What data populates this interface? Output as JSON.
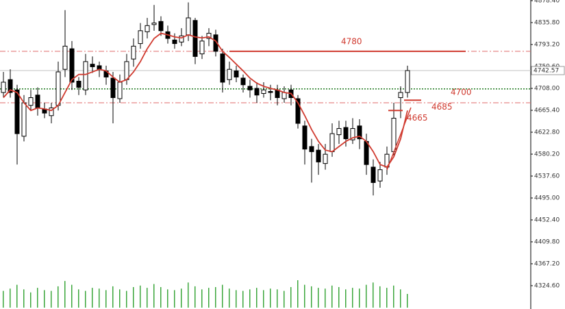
{
  "chart_data": {
    "type": "candlestick",
    "ylim": [
      4279.3,
      4879.7
    ],
    "yticks": [
      {
        "value": 4878.4,
        "label": "4878.40"
      },
      {
        "value": 4835.8,
        "label": "4835.80"
      },
      {
        "value": 4793.2,
        "label": "4793.20"
      },
      {
        "value": 4750.6,
        "label": "4750.60"
      },
      {
        "value": 4708,
        "label": "4708.00"
      },
      {
        "value": 4665.4,
        "label": "4665.40"
      },
      {
        "value": 4622.8,
        "label": "4622.80"
      },
      {
        "value": 4580.2,
        "label": "4580.20"
      },
      {
        "value": 4537.6,
        "label": "4537.60"
      },
      {
        "value": 4495,
        "label": "4495.00"
      },
      {
        "value": 4452.4,
        "label": "4452.40"
      },
      {
        "value": 4409.8,
        "label": "4409.80"
      },
      {
        "value": 4367.2,
        "label": "4367.20"
      },
      {
        "value": 4324.6,
        "label": "4324.60"
      }
    ],
    "open": [
      4700,
      4725,
      4705,
      4615,
      4675,
      4695,
      4668,
      4655,
      4675,
      4745,
      4785,
      4722,
      4705,
      4755,
      4752,
      4742,
      4728,
      4688,
      4725,
      4765,
      4795,
      4818,
      4832,
      4838,
      4818,
      4802,
      4798,
      4812,
      4840,
      4775,
      4805,
      4812,
      4775,
      4725,
      4742,
      4728,
      4712,
      4708,
      4698,
      4702,
      4705,
      4688,
      4705,
      4688,
      4635,
      4595,
      4588,
      4562,
      4585,
      4618,
      4632,
      4608,
      4635,
      4605,
      4555,
      4528,
      4555,
      4585,
      4690,
      4700
    ],
    "high": [
      4740,
      4745,
      4715,
      4695,
      4705,
      4710,
      4680,
      4680,
      4760,
      4860,
      4800,
      4730,
      4775,
      4770,
      4760,
      4752,
      4740,
      4735,
      4775,
      4805,
      4835,
      4845,
      4870,
      4848,
      4830,
      4815,
      4825,
      4875,
      4845,
      4810,
      4825,
      4822,
      4785,
      4760,
      4752,
      4735,
      4725,
      4720,
      4720,
      4715,
      4715,
      4712,
      4715,
      4695,
      4645,
      4610,
      4600,
      4600,
      4640,
      4645,
      4645,
      4650,
      4648,
      4620,
      4570,
      4565,
      4595,
      4680,
      4712,
      4752
    ],
    "low": [
      4690,
      4690,
      4560,
      4605,
      4665,
      4655,
      4650,
      4640,
      4665,
      4730,
      4705,
      4695,
      4695,
      4738,
      4730,
      4715,
      4640,
      4680,
      4715,
      4750,
      4785,
      4805,
      4820,
      4810,
      4795,
      4785,
      4790,
      4800,
      4755,
      4765,
      4790,
      4770,
      4700,
      4715,
      4720,
      4700,
      4690,
      4680,
      4690,
      4685,
      4675,
      4680,
      4675,
      4630,
      4560,
      4525,
      4540,
      4550,
      4575,
      4600,
      4595,
      4600,
      4590,
      4540,
      4500,
      4515,
      4540,
      4575,
      4650,
      4690
    ],
    "close": [
      4720,
      4700,
      4620,
      4680,
      4690,
      4670,
      4660,
      4670,
      4740,
      4790,
      4720,
      4710,
      4760,
      4750,
      4745,
      4730,
      4690,
      4720,
      4760,
      4790,
      4820,
      4830,
      4835,
      4820,
      4805,
      4795,
      4810,
      4845,
      4770,
      4800,
      4815,
      4780,
      4720,
      4745,
      4730,
      4715,
      4705,
      4695,
      4705,
      4700,
      4690,
      4700,
      4690,
      4640,
      4590,
      4585,
      4565,
      4580,
      4620,
      4630,
      4610,
      4630,
      4610,
      4560,
      4525,
      4550,
      4580,
      4650,
      4700,
      4742.57
    ],
    "ma": [
      4690,
      4705,
      4700,
      4680,
      4665,
      4670,
      4668,
      4665,
      4675,
      4700,
      4725,
      4735,
      4735,
      4740,
      4745,
      4742,
      4730,
      4720,
      4725,
      4740,
      4760,
      4785,
      4805,
      4815,
      4812,
      4808,
      4806,
      4812,
      4808,
      4806,
      4808,
      4800,
      4780,
      4768,
      4755,
      4742,
      4728,
      4718,
      4712,
      4708,
      4705,
      4700,
      4698,
      4680,
      4655,
      4628,
      4605,
      4588,
      4585,
      4595,
      4605,
      4612,
      4615,
      4605,
      4585,
      4560,
      4555,
      4575,
      4610,
      4665
    ],
    "ma_color": "#d03a2f",
    "volume": [
      22,
      25,
      30,
      24,
      20,
      26,
      23,
      22,
      28,
      35,
      30,
      24,
      22,
      26,
      25,
      23,
      28,
      24,
      22,
      27,
      29,
      26,
      31,
      27,
      24,
      23,
      25,
      33,
      28,
      24,
      26,
      27,
      30,
      25,
      23,
      22,
      24,
      26,
      23,
      25,
      24,
      22,
      27,
      36,
      30,
      28,
      26,
      25,
      29,
      27,
      24,
      26,
      25,
      30,
      33,
      28,
      26,
      29,
      24,
      18
    ],
    "volume_color": "#3aa63a",
    "current_price": {
      "value": 4742.57,
      "label": "4742.57"
    },
    "reference_lines": [
      {
        "value": 4780,
        "color": "#e06a6a",
        "style": "dashdot"
      },
      {
        "value": 4707,
        "color": "#1f7a1f",
        "style": "dotted"
      },
      {
        "value": 4680,
        "color": "#e06a6a",
        "style": "dashdot"
      }
    ],
    "marked_levels": [
      4780,
      4700,
      4685,
      4665
    ],
    "marked_color": "#d03a2f"
  }
}
